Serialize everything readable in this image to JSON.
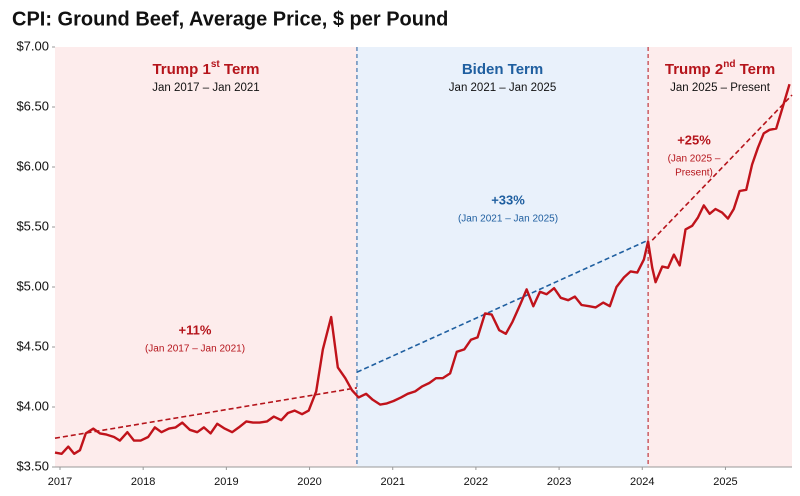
{
  "chart_data": {
    "type": "line",
    "title": "CPI: Ground Beef, Average Price, $ per Pound",
    "xlim": [
      2016.94,
      2025.8
    ],
    "xticks": [
      2017,
      2018,
      2019,
      2020,
      2021,
      2022,
      2023,
      2024,
      2025
    ],
    "ylim": [
      3.5,
      7.0
    ],
    "yticks": [
      {
        "value": 3.5,
        "label": "$3.50"
      },
      {
        "value": 4.0,
        "label": "$4.00"
      },
      {
        "value": 4.5,
        "label": "$4.50"
      },
      {
        "value": 5.0,
        "label": "$5.00"
      },
      {
        "value": 5.5,
        "label": "$5.50"
      },
      {
        "value": 6.0,
        "label": "$6.00"
      },
      {
        "value": 6.5,
        "label": "$6.50"
      },
      {
        "value": 7.0,
        "label": "$7.00"
      }
    ],
    "series": [
      {
        "color": "#c0131b",
        "x": [
          2016.94,
          2017.02,
          2017.1,
          2017.17,
          2017.24,
          2017.31,
          2017.4,
          2017.48,
          2017.56,
          2017.65,
          2017.72,
          2017.81,
          2017.89,
          2017.97,
          2018.06,
          2018.14,
          2018.22,
          2018.31,
          2018.39,
          2018.47,
          2018.56,
          2018.65,
          2018.73,
          2018.81,
          2018.89,
          2018.98,
          2019.07,
          2019.15,
          2019.24,
          2019.32,
          2019.4,
          2019.49,
          2019.57,
          2019.66,
          2019.74,
          2019.82,
          2019.91,
          2019.99,
          2020.08,
          2020.16,
          2020.26,
          2020.34,
          2020.43,
          2020.51,
          2020.59,
          2020.68,
          2020.76,
          2020.85,
          2020.93,
          2021.01,
          2021.1,
          2021.18,
          2021.27,
          2021.35,
          2021.44,
          2021.52,
          2021.6,
          2021.69,
          2021.77,
          2021.86,
          2021.94,
          2022.02,
          2022.11,
          2022.19,
          2022.28,
          2022.36,
          2022.44,
          2022.53,
          2022.61,
          2022.69,
          2022.77,
          2022.85,
          2022.94,
          2023.02,
          2023.11,
          2023.19,
          2023.27,
          2023.36,
          2023.44,
          2023.53,
          2023.61,
          2023.69,
          2023.78,
          2023.86,
          2023.94,
          2024.02,
          2024.07,
          2024.12,
          2024.16,
          2024.24,
          2024.31,
          2024.38,
          2024.45,
          2024.52,
          2024.6,
          2024.67,
          2024.74,
          2024.81,
          2024.88,
          2024.96,
          2025.03,
          2025.1,
          2025.17,
          2025.25,
          2025.32,
          2025.39,
          2025.46,
          2025.53,
          2025.61,
          2025.68,
          2025.77
        ],
        "values": [
          3.62,
          3.61,
          3.67,
          3.61,
          3.64,
          3.78,
          3.82,
          3.78,
          3.77,
          3.75,
          3.72,
          3.79,
          3.72,
          3.72,
          3.75,
          3.83,
          3.79,
          3.82,
          3.83,
          3.87,
          3.81,
          3.79,
          3.83,
          3.78,
          3.86,
          3.82,
          3.79,
          3.83,
          3.88,
          3.87,
          3.87,
          3.88,
          3.92,
          3.89,
          3.95,
          3.97,
          3.94,
          3.97,
          4.13,
          4.48,
          4.75,
          4.33,
          4.24,
          4.14,
          4.08,
          4.11,
          4.06,
          4.02,
          4.03,
          4.05,
          4.08,
          4.11,
          4.13,
          4.17,
          4.2,
          4.24,
          4.24,
          4.28,
          4.46,
          4.48,
          4.56,
          4.58,
          4.78,
          4.77,
          4.64,
          4.61,
          4.71,
          4.85,
          4.98,
          4.84,
          4.96,
          4.94,
          4.99,
          4.91,
          4.89,
          4.92,
          4.85,
          4.84,
          4.83,
          4.87,
          4.84,
          5.0,
          5.08,
          5.13,
          5.12,
          5.23,
          5.38,
          5.16,
          5.04,
          5.17,
          5.16,
          5.27,
          5.18,
          5.48,
          5.51,
          5.58,
          5.68,
          5.61,
          5.65,
          5.62,
          5.57,
          5.65,
          5.8,
          5.81,
          6.02,
          6.16,
          6.28,
          6.31,
          6.32,
          6.48,
          6.69
        ]
      }
    ],
    "regions": [
      {
        "x": [
          2016.94,
          2020.57
        ],
        "fill": "#fdecec",
        "color": "#b5141b",
        "title": [
          "Trump 1",
          "st",
          " Term"
        ],
        "period": "Jan 2017 – Jan 2021",
        "trend": {
          "x": [
            2016.94,
            2020.57
          ],
          "values": [
            3.74,
            4.16
          ]
        },
        "change": "+11%",
        "change_period": [
          "(Jan 2017 – Jan 2021)"
        ]
      },
      {
        "x": [
          2020.57,
          2024.07
        ],
        "fill": "#e9f1fb",
        "color": "#1f5fa0",
        "title": [
          "Biden Term"
        ],
        "period": "Jan 2021 – Jan 2025",
        "trend": {
          "x": [
            2020.57,
            2024.07
          ],
          "values": [
            4.29,
            5.39
          ]
        },
        "change": "+33%",
        "change_period": [
          "(Jan 2021 – Jan 2025)"
        ]
      },
      {
        "x": [
          2024.07,
          2025.8
        ],
        "fill": "#fdecec",
        "color": "#b5141b",
        "title": [
          "Trump 2",
          "nd",
          " Term"
        ],
        "period": "Jan 2025 – Present",
        "trend": {
          "x": [
            2024.12,
            2025.8
          ],
          "values": [
            5.39,
            6.6
          ]
        },
        "change": "+25%",
        "change_period": [
          "(Jan 2025 –",
          "Present)"
        ]
      }
    ]
  }
}
